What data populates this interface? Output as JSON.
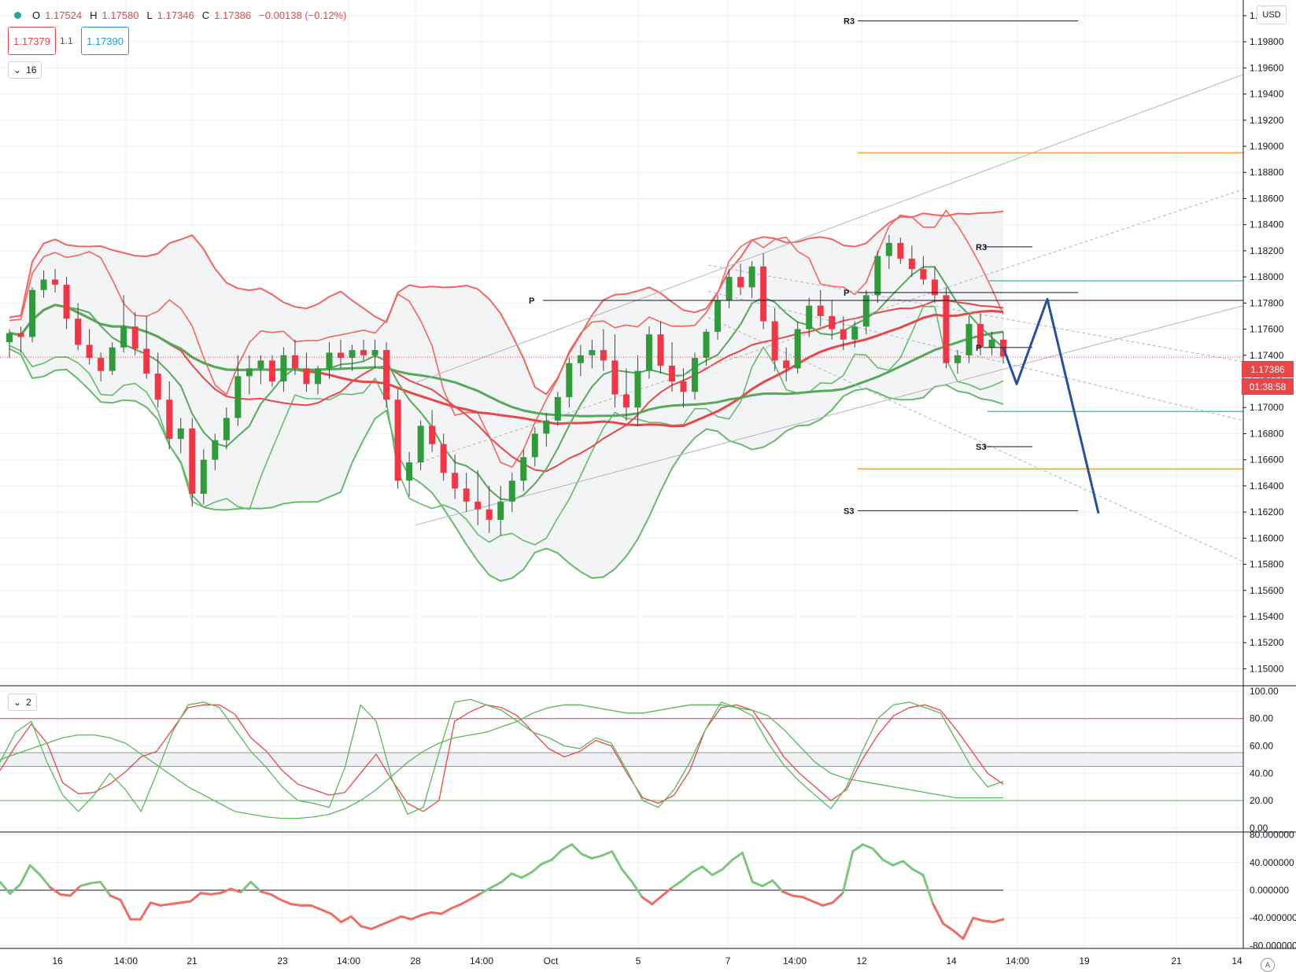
{
  "header": {
    "open_label": "O",
    "open": "1.17524",
    "high_label": "H",
    "high": "1.17580",
    "low_label": "L",
    "low": "1.17346",
    "close_label": "C",
    "close": "1.17386",
    "change": "−0.00138 (−0.12%)",
    "sell_price": "1.17379",
    "spread": "1.1",
    "buy_price": "1.17390",
    "main_pane_toggle": "16",
    "stoch_pane_toggle": "2",
    "currency": "USD",
    "last_price": "1.17386",
    "countdown": "01:38:58",
    "auto_scale": "A"
  },
  "colors": {
    "up": "#2e9c3a",
    "down": "#f23645",
    "upper_band": "#f0665f",
    "lower_band": "#64bb6a",
    "ma_red": "#e8474a",
    "ma_green": "#56a85a",
    "pivot": "#131722",
    "fib": "#f4a340",
    "level_green": "#4fd18c",
    "projection": "#2850a0",
    "channel": "#b2b5be"
  },
  "chart_data": [
    {
      "type": "candlestick",
      "title": "",
      "y_ticks": [
        "1.20000",
        "1.19800",
        "1.19600",
        "1.19400",
        "1.19200",
        "1.19000",
        "1.18800",
        "1.18600",
        "1.18400",
        "1.18200",
        "1.18000",
        "1.17800",
        "1.17600",
        "1.17400",
        "1.17200",
        "1.17000",
        "1.16800",
        "1.16600",
        "1.16400",
        "1.16200",
        "1.16000",
        "1.15800",
        "1.15600",
        "1.15400",
        "1.15200",
        "1.15000"
      ],
      "y_range": [
        1.1487,
        1.2012
      ],
      "x_ticks": [
        "16",
        "14:00",
        "21",
        "23",
        "14:00",
        "28",
        "14:00",
        "Oct",
        "5",
        "7",
        "14:00",
        "12",
        "14",
        "14:00",
        "19",
        "21",
        "14"
      ],
      "ohlc": [
        [
          1.175,
          1.176,
          1.1738,
          1.1757
        ],
        [
          1.1757,
          1.1762,
          1.1742,
          1.1754
        ],
        [
          1.1754,
          1.1792,
          1.175,
          1.179
        ],
        [
          1.179,
          1.1805,
          1.1784,
          1.1798
        ],
        [
          1.1798,
          1.1806,
          1.1788,
          1.1794
        ],
        [
          1.1794,
          1.18,
          1.176,
          1.1768
        ],
        [
          1.1768,
          1.178,
          1.1744,
          1.1748
        ],
        [
          1.1748,
          1.176,
          1.1733,
          1.1738
        ],
        [
          1.1738,
          1.1742,
          1.172,
          1.1728
        ],
        [
          1.1728,
          1.175,
          1.1725,
          1.1746
        ],
        [
          1.1746,
          1.1786,
          1.1742,
          1.1762
        ],
        [
          1.1762,
          1.1773,
          1.174,
          1.1745
        ],
        [
          1.1745,
          1.177,
          1.1722,
          1.1726
        ],
        [
          1.1726,
          1.1742,
          1.17,
          1.1706
        ],
        [
          1.1706,
          1.172,
          1.1668,
          1.1676
        ],
        [
          1.1676,
          1.1692,
          1.1665,
          1.1684
        ],
        [
          1.1684,
          1.1692,
          1.1624,
          1.1634
        ],
        [
          1.1634,
          1.1668,
          1.1626,
          1.166
        ],
        [
          1.166,
          1.168,
          1.1652,
          1.1675
        ],
        [
          1.1675,
          1.17,
          1.1668,
          1.1692
        ],
        [
          1.1692,
          1.174,
          1.1686,
          1.1724
        ],
        [
          1.1724,
          1.174,
          1.171,
          1.173
        ],
        [
          1.173,
          1.174,
          1.1718,
          1.1736
        ],
        [
          1.1736,
          1.174,
          1.1716,
          1.172
        ],
        [
          1.172,
          1.1746,
          1.1712,
          1.174
        ],
        [
          1.174,
          1.1752,
          1.1725,
          1.173
        ],
        [
          1.173,
          1.1742,
          1.1712,
          1.1718
        ],
        [
          1.1718,
          1.1732,
          1.171,
          1.173
        ],
        [
          1.173,
          1.175,
          1.1722,
          1.1742
        ],
        [
          1.1742,
          1.1752,
          1.173,
          1.1738
        ],
        [
          1.1738,
          1.1748,
          1.1728,
          1.1744
        ],
        [
          1.1744,
          1.1752,
          1.1736,
          1.174
        ],
        [
          1.174,
          1.1752,
          1.173,
          1.1744
        ],
        [
          1.1744,
          1.175,
          1.17,
          1.1706
        ],
        [
          1.1706,
          1.1714,
          1.1638,
          1.1644
        ],
        [
          1.1644,
          1.1666,
          1.1632,
          1.1658
        ],
        [
          1.1658,
          1.169,
          1.1652,
          1.1686
        ],
        [
          1.1686,
          1.1698,
          1.1666,
          1.1672
        ],
        [
          1.1672,
          1.168,
          1.1644,
          1.165
        ],
        [
          1.165,
          1.1664,
          1.163,
          1.1638
        ],
        [
          1.1638,
          1.165,
          1.162,
          1.1628
        ],
        [
          1.1628,
          1.1652,
          1.161,
          1.1622
        ],
        [
          1.1622,
          1.164,
          1.1604,
          1.1614
        ],
        [
          1.1614,
          1.164,
          1.1602,
          1.1628
        ],
        [
          1.1628,
          1.165,
          1.162,
          1.1644
        ],
        [
          1.1644,
          1.1668,
          1.1636,
          1.1662
        ],
        [
          1.1662,
          1.1685,
          1.1655,
          1.168
        ],
        [
          1.168,
          1.1696,
          1.167,
          1.169
        ],
        [
          1.169,
          1.1712,
          1.1686,
          1.1708
        ],
        [
          1.1708,
          1.1738,
          1.17,
          1.1734
        ],
        [
          1.1734,
          1.1748,
          1.1724,
          1.174
        ],
        [
          1.174,
          1.1752,
          1.173,
          1.1744
        ],
        [
          1.1744,
          1.176,
          1.1728,
          1.1736
        ],
        [
          1.1736,
          1.1756,
          1.17,
          1.171
        ],
        [
          1.171,
          1.173,
          1.169,
          1.17
        ],
        [
          1.17,
          1.174,
          1.1686,
          1.1728
        ],
        [
          1.1728,
          1.1762,
          1.1722,
          1.1756
        ],
        [
          1.1756,
          1.1766,
          1.1726,
          1.1732
        ],
        [
          1.1732,
          1.175,
          1.1712,
          1.172
        ],
        [
          1.172,
          1.173,
          1.17,
          1.1712
        ],
        [
          1.1712,
          1.1742,
          1.1706,
          1.1738
        ],
        [
          1.1738,
          1.176,
          1.1732,
          1.1758
        ],
        [
          1.1758,
          1.1786,
          1.1752,
          1.1782
        ],
        [
          1.1782,
          1.1806,
          1.1776,
          1.18
        ],
        [
          1.18,
          1.181,
          1.1786,
          1.1792
        ],
        [
          1.1792,
          1.1812,
          1.1784,
          1.1808
        ],
        [
          1.1808,
          1.1818,
          1.176,
          1.1766
        ],
        [
          1.1766,
          1.1776,
          1.1728,
          1.1736
        ],
        [
          1.1736,
          1.1746,
          1.172,
          1.173
        ],
        [
          1.173,
          1.1766,
          1.1726,
          1.176
        ],
        [
          1.176,
          1.1784,
          1.1754,
          1.1778
        ],
        [
          1.1778,
          1.179,
          1.1762,
          1.177
        ],
        [
          1.177,
          1.1782,
          1.1752,
          1.176
        ],
        [
          1.176,
          1.177,
          1.1744,
          1.1752
        ],
        [
          1.1752,
          1.1766,
          1.1746,
          1.1762
        ],
        [
          1.1762,
          1.179,
          1.1756,
          1.1786
        ],
        [
          1.1786,
          1.182,
          1.178,
          1.1816
        ],
        [
          1.1816,
          1.1832,
          1.1806,
          1.1826
        ],
        [
          1.1826,
          1.183,
          1.181,
          1.1814
        ],
        [
          1.1814,
          1.1824,
          1.18,
          1.1806
        ],
        [
          1.1806,
          1.1816,
          1.1794,
          1.1798
        ],
        [
          1.1798,
          1.1808,
          1.178,
          1.1786
        ],
        [
          1.1786,
          1.1792,
          1.173,
          1.1734
        ],
        [
          1.1734,
          1.1744,
          1.1726,
          1.174
        ],
        [
          1.174,
          1.177,
          1.1734,
          1.1764
        ],
        [
          1.1764,
          1.1772,
          1.174,
          1.1746
        ],
        [
          1.1746,
          1.1758,
          1.174,
          1.1752
        ],
        [
          1.1752,
          1.1758,
          1.1734,
          1.1739
        ]
      ],
      "indicators": [
        "Bollinger Bands (two sets)",
        "Moving averages",
        "Regression channel",
        "Pivot points"
      ],
      "annotations": [
        {
          "text": "R3",
          "price": 1.1996
        },
        {
          "text": "P",
          "price": 1.1782
        },
        {
          "text": "S3",
          "price": 1.1621
        },
        {
          "text": "R3",
          "price": 1.1823
        },
        {
          "text": "P",
          "price": 1.1788
        },
        {
          "text": "S3",
          "price": 1.167
        },
        {
          "text": "P",
          "price": 1.1746
        }
      ],
      "fib_levels": [
        1.1895,
        1.1653
      ],
      "projection": [
        [
          1.1746,
          1.1757
        ],
        [
          1.1718,
          1.173
        ],
        [
          1.1783,
          1.1781
        ],
        [
          1.1619,
          1.162
        ]
      ]
    },
    {
      "type": "line",
      "title": "",
      "y_ticks": [
        "100.00",
        "80.00",
        "60.00",
        "40.00",
        "20.00",
        "0.00"
      ],
      "y_range": [
        -3,
        104
      ],
      "levels": [
        80,
        20
      ],
      "band": [
        55,
        45
      ],
      "series": [
        {
          "color": "#e8474a",
          "values": [
            42,
            60,
            76,
            62,
            33,
            25,
            26,
            32,
            41,
            52,
            56,
            72,
            88,
            90,
            90,
            83,
            66,
            56,
            42,
            32,
            28,
            24,
            26,
            40,
            54,
            35,
            18,
            12,
            20,
            78,
            85,
            90,
            88,
            82,
            70,
            58,
            52,
            56,
            64,
            60,
            40,
            22,
            18,
            24,
            42,
            72,
            88,
            90,
            86,
            70,
            52,
            40,
            30,
            20,
            28,
            50,
            68,
            82,
            88,
            90,
            86,
            72,
            56,
            40,
            32
          ]
        },
        {
          "color": "#5cb85c",
          "values": [
            48,
            70,
            78,
            48,
            24,
            12,
            24,
            40,
            28,
            12,
            40,
            70,
            90,
            92,
            88,
            72,
            56,
            44,
            30,
            20,
            18,
            15,
            44,
            90,
            78,
            36,
            10,
            15,
            55,
            92,
            94,
            90,
            86,
            78,
            70,
            66,
            60,
            58,
            66,
            62,
            42,
            20,
            15,
            28,
            48,
            72,
            92,
            88,
            82,
            62,
            46,
            34,
            24,
            14,
            30,
            56,
            80,
            90,
            92,
            88,
            84,
            64,
            44,
            30,
            34
          ]
        },
        {
          "color": "#5cb85c",
          "values": [
            50,
            54,
            58,
            62,
            66,
            68,
            68,
            66,
            62,
            54,
            46,
            38,
            30,
            24,
            18,
            12,
            10,
            8,
            7,
            7,
            8,
            10,
            14,
            20,
            28,
            38,
            48,
            56,
            62,
            66,
            68,
            70,
            74,
            78,
            84,
            88,
            90,
            90,
            88,
            86,
            84,
            84,
            86,
            88,
            90,
            90,
            90,
            88,
            86,
            82,
            72,
            60,
            48,
            40,
            36,
            34,
            32,
            30,
            28,
            26,
            24,
            22,
            22,
            22,
            22
          ]
        }
      ]
    },
    {
      "type": "line",
      "title": "",
      "y_ticks": [
        "80.000000",
        "40.000000",
        "0.000000",
        "-40.000000",
        "-80.000000"
      ],
      "y_range": [
        -84,
        84
      ],
      "zero_line": 0,
      "values": [
        12,
        -5,
        8,
        36,
        22,
        4,
        -6,
        -8,
        6,
        10,
        12,
        -8,
        -14,
        -42,
        -42,
        -18,
        -22,
        -20,
        -18,
        -16,
        -4,
        -6,
        -4,
        2,
        -3,
        12,
        -2,
        -6,
        -14,
        -20,
        -22,
        -22,
        -28,
        -34,
        -46,
        -38,
        -52,
        -56,
        -50,
        -44,
        -38,
        -42,
        -36,
        -32,
        -34,
        -26,
        -20,
        -12,
        -4,
        4,
        12,
        24,
        18,
        26,
        38,
        44,
        58,
        66,
        52,
        46,
        50,
        56,
        30,
        12,
        -10,
        -20,
        -8,
        4,
        14,
        26,
        34,
        22,
        30,
        44,
        54,
        12,
        6,
        14,
        -2,
        -8,
        -10,
        -16,
        -22,
        -18,
        -4,
        56,
        66,
        60,
        44,
        36,
        42,
        30,
        22,
        -20,
        -48,
        -58,
        -70,
        -40,
        -44,
        -46,
        -42
      ]
    }
  ]
}
